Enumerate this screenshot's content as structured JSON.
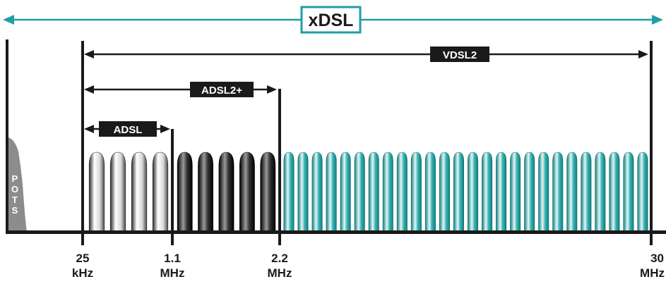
{
  "title": "xDSL",
  "bands": [
    {
      "name": "VDSL2"
    },
    {
      "name": "ADSL2+"
    },
    {
      "name": "ADSL"
    }
  ],
  "pots_label": [
    "P",
    "O",
    "T",
    "S"
  ],
  "frequency_ticks": [
    {
      "value": "25",
      "unit": "kHz"
    },
    {
      "value": "1.1",
      "unit": "MHz"
    },
    {
      "value": "2.2",
      "unit": "MHz"
    },
    {
      "value": "30",
      "unit": "MHz"
    }
  ],
  "carrier_groups": [
    {
      "band": "ADSL",
      "count": 4,
      "color": "#ffffff"
    },
    {
      "band": "ADSL2+",
      "count": 5,
      "color": "#111111"
    },
    {
      "band": "VDSL2",
      "count": 26,
      "color": "#2aa6a6"
    }
  ],
  "colors": {
    "accent": "#1f9fa3",
    "axis": "#1a1a1a",
    "label_bg": "#1a1a1a",
    "pots_fill": "#8c8c8c"
  }
}
